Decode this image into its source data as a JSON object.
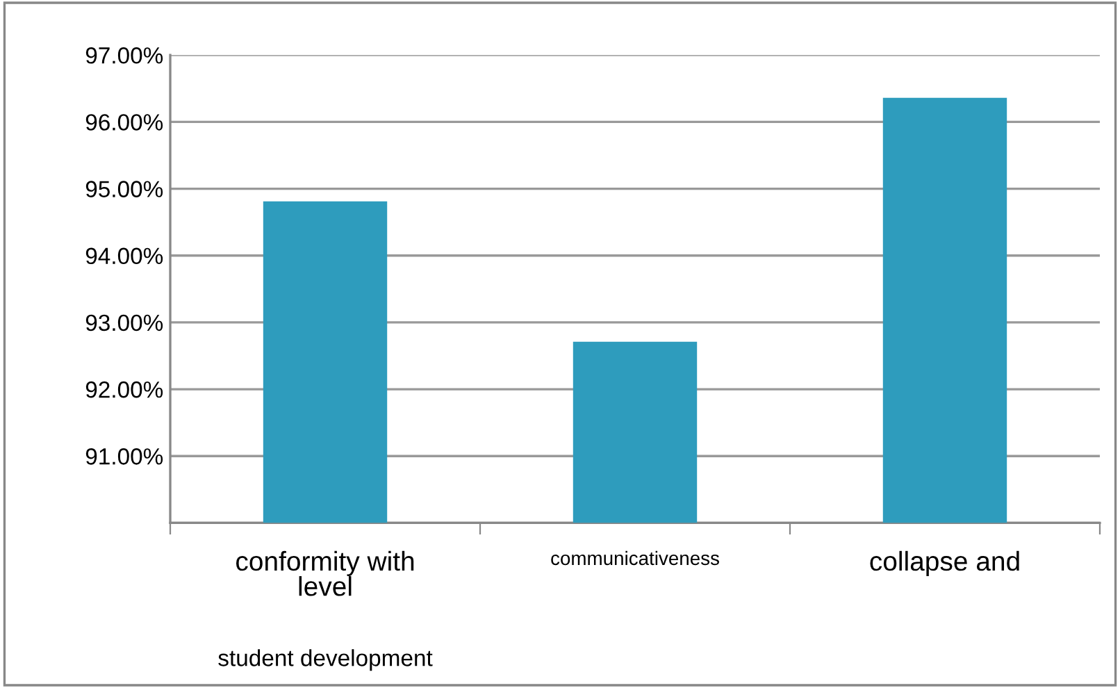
{
  "chart_data": {
    "type": "bar",
    "categories": [
      "conformity with level",
      "communicativeness",
      "collapse and"
    ],
    "values": [
      94.81,
      92.71,
      96.36
    ],
    "color": "#2e9cbd",
    "ylim": [
      90,
      97
    ],
    "yticks": [
      {
        "value": 90,
        "label": null
      },
      {
        "value": 91,
        "label": "91.00%"
      },
      {
        "value": 92,
        "label": "92.00%"
      },
      {
        "value": 93,
        "label": "93.00%"
      },
      {
        "value": 94,
        "label": "94.00%"
      },
      {
        "value": 95,
        "label": "95.00%"
      },
      {
        "value": 96,
        "label": "96.00%"
      },
      {
        "value": 97,
        "label": "97.00%"
      }
    ],
    "grid": "y",
    "annotations": [
      "student development"
    ]
  }
}
